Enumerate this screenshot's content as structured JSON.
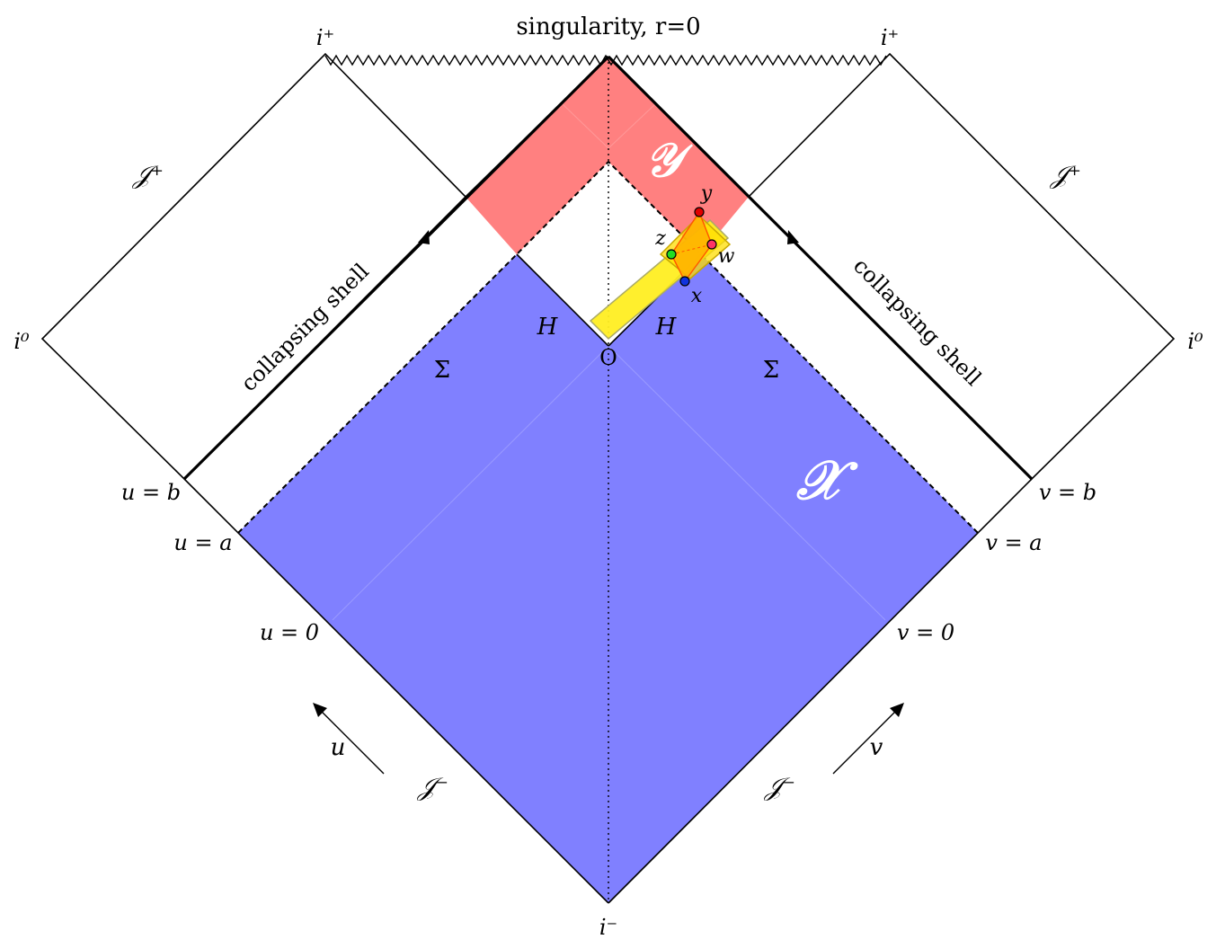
{
  "diagram": {
    "top_label": "singularity, r=0",
    "i_plus_left": "i⁺",
    "i_plus_right": "i⁺",
    "i_zero_left": "i⁰",
    "i_zero_right": "i⁰",
    "i_minus": "i⁻",
    "scri_plus_left": "𝒥⁺",
    "scri_plus_right": "𝒥⁺",
    "scri_minus_left": "𝒥⁻",
    "scri_minus_right": "𝒥⁻",
    "shell_left": "collapsing shell",
    "shell_right": "collapsing shell",
    "horizon_left": "H",
    "horizon_right": "H",
    "origin": "O",
    "sigma_left": "Σ",
    "sigma_right": "Σ",
    "region_y": "𝒴",
    "region_x": "𝒳",
    "u_b": "u = b",
    "u_a": "u = a",
    "u_0": "u = 0",
    "v_b": "v = b",
    "v_a": "v = a",
    "v_0": "v = 0",
    "u_axis": "u",
    "v_axis": "v",
    "point_x": "x",
    "point_y": "y",
    "point_z": "z",
    "point_w": "w"
  },
  "colors": {
    "region_x_fill": "#8080ff",
    "region_y_fill": "#ff8080",
    "yellow_strip": "#ffee22",
    "point_y": "#e00000",
    "point_w": "#ff3366",
    "point_z": "#22dd22",
    "point_x": "#1133dd"
  }
}
